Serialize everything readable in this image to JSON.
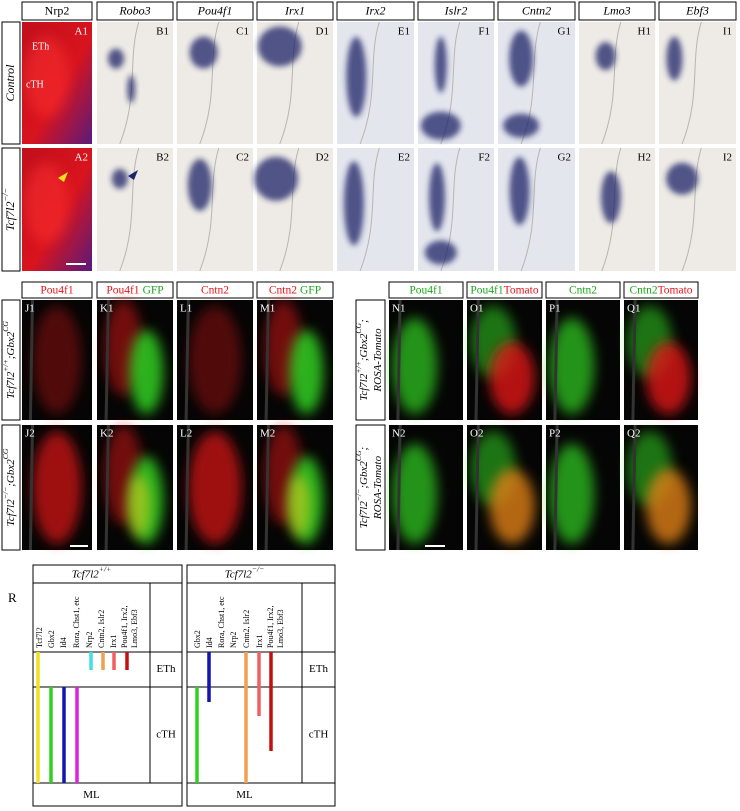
{
  "top": {
    "headers": [
      "Nrp2",
      "Robo3",
      "Pou4f1",
      "Irx1",
      "Irx2",
      "Islr2",
      "Cntn2",
      "Lmo3",
      "Ebf3"
    ],
    "row_labels": [
      [
        {
          "t": "Control"
        }
      ],
      [
        {
          "t": "Tcf7l2"
        },
        {
          "t": "−/−",
          "sup": true
        }
      ]
    ],
    "panel_labels": [
      [
        "A1",
        "B1",
        "C1",
        "D1",
        "E1",
        "F1",
        "G1",
        "H1",
        "I1"
      ],
      [
        "A2",
        "B2",
        "C2",
        "D2",
        "E2",
        "F2",
        "G2",
        "H2",
        "I2"
      ]
    ],
    "region_labels": [
      "ETh",
      "cTH"
    ]
  },
  "middle": {
    "left": {
      "headers": [
        [
          {
            "t": "Pou4f1",
            "color": "#e8141c"
          }
        ],
        [
          {
            "t": "Pou4f1",
            "color": "#e8141c"
          },
          {
            "t": "GFP",
            "color": "#1aa81a"
          }
        ],
        [
          {
            "t": "Cntn2",
            "color": "#e8141c"
          }
        ],
        [
          {
            "t": "Cntn2",
            "color": "#e8141c"
          },
          {
            "t": "GFP",
            "color": "#1aa81a"
          }
        ]
      ],
      "row_labels": [
        [
          {
            "t": "Tcf7l2"
          },
          {
            "t": "+/+",
            "sup": true
          },
          {
            "t": ";Gbx2"
          },
          {
            "t": "CG",
            "sup": true
          }
        ],
        [
          {
            "t": "Tcf7l2"
          },
          {
            "t": "−/−",
            "sup": true
          },
          {
            "t": ";Gbx2"
          },
          {
            "t": "CG",
            "sup": true
          }
        ]
      ],
      "panel_labels": [
        [
          "J1",
          "K1",
          "L1",
          "M1"
        ],
        [
          "J2",
          "K2",
          "L2",
          "M2"
        ]
      ]
    },
    "right": {
      "headers": [
        [
          {
            "t": "Pou4f1",
            "color": "#1aa81a"
          }
        ],
        [
          {
            "t": "Pou4f1",
            "color": "#1aa81a"
          },
          {
            "t": "Tomato",
            "color": "#e8141c"
          }
        ],
        [
          {
            "t": "Cntn2",
            "color": "#1aa81a"
          }
        ],
        [
          {
            "t": "Cntn2",
            "color": "#1aa81a"
          },
          {
            "t": "Tomato",
            "color": "#e8141c"
          }
        ]
      ],
      "row_labels": [
        [
          [
            {
              "t": "Tcf7l2"
            },
            {
              "t": "+/+",
              "sup": true
            },
            {
              "t": ";Gbx2"
            },
            {
              "t": "CG",
              "sup": true
            },
            {
              "t": ";"
            }
          ],
          [
            {
              "t": "ROSA-Tomato"
            }
          ]
        ],
        [
          [
            {
              "t": "Tcf7l2"
            },
            {
              "t": "−/−",
              "sup": true
            },
            {
              "t": ";Gbx2"
            },
            {
              "t": "CG",
              "sup": true
            },
            {
              "t": ";"
            }
          ],
          [
            {
              "t": "ROSA-Tomato"
            }
          ]
        ]
      ],
      "panel_labels": [
        [
          "N1",
          "O1",
          "P1",
          "Q1"
        ],
        [
          "N2",
          "O2",
          "P2",
          "Q2"
        ]
      ]
    }
  },
  "summary": {
    "label": "R",
    "diagrams": [
      {
        "title": [
          {
            "t": "Tcf7l2"
          },
          {
            "t": "+/+",
            "sup": true
          }
        ],
        "genes": [
          [
            "Tcf7l2"
          ],
          [
            "Gbx2"
          ],
          [
            "Id4"
          ],
          [
            "Rora, Chst1, etc"
          ],
          [
            "Nrp2"
          ],
          [
            "Cntn2, Islr2"
          ],
          [
            "Irx1"
          ],
          [
            "Pou4f1, Irx2,",
            "Lmo3, Ebf3"
          ]
        ],
        "regions": [
          "ETh",
          "cTH",
          "ML"
        ]
      },
      {
        "title": [
          {
            "t": "Tcf7l2"
          },
          {
            "t": "−/−",
            "sup": true
          }
        ],
        "genes": [
          [
            "Gbx2"
          ],
          [
            "Id4"
          ],
          [
            "Rora, Chst1, etc"
          ],
          [
            "Nrp2"
          ],
          [
            "Cntn2, Islr2"
          ],
          [
            "Irx1"
          ],
          [
            "Pou4f1, Irx2,",
            "Lmo3, Ebf3"
          ]
        ],
        "regions": [
          "ETh",
          "cTH",
          "ML"
        ]
      }
    ]
  }
}
